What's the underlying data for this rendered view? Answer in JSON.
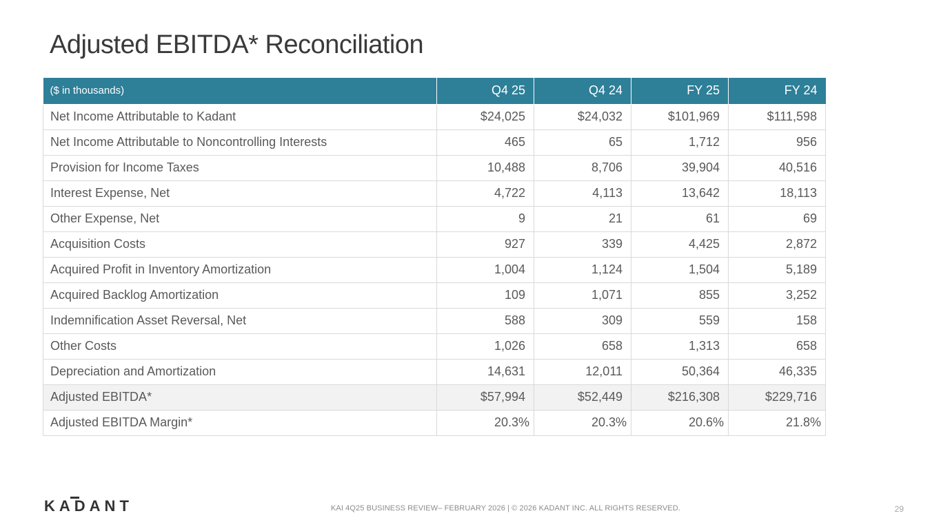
{
  "title": "Adjusted EBITDA* Reconciliation",
  "table": {
    "header": {
      "label": "($ in thousands)",
      "columns": [
        "Q4 25",
        "Q4 24",
        "FY 25",
        "FY 24"
      ]
    },
    "rows": [
      {
        "label": "Net Income Attributable to Kadant",
        "values": [
          "$24,025",
          "$24,032",
          "$101,969",
          "$111,598"
        ]
      },
      {
        "label": "Net Income Attributable to Noncontrolling Interests",
        "values": [
          "465",
          "65",
          "1,712",
          "956"
        ]
      },
      {
        "label": "Provision for Income Taxes",
        "values": [
          "10,488",
          "8,706",
          "39,904",
          "40,516"
        ]
      },
      {
        "label": "Interest Expense, Net",
        "values": [
          "4,722",
          "4,113",
          "13,642",
          "18,113"
        ]
      },
      {
        "label": "Other Expense, Net",
        "values": [
          "9",
          "21",
          "61",
          "69"
        ]
      },
      {
        "label": "Acquisition Costs",
        "values": [
          "927",
          "339",
          "4,425",
          "2,872"
        ]
      },
      {
        "label": "Acquired Profit in Inventory Amortization",
        "values": [
          "1,004",
          "1,124",
          "1,504",
          "5,189"
        ]
      },
      {
        "label": "Acquired Backlog Amortization",
        "values": [
          "109",
          "1,071",
          "855",
          "3,252"
        ]
      },
      {
        "label": "Indemnification Asset Reversal, Net",
        "values": [
          "588",
          "309",
          "559",
          "158"
        ]
      },
      {
        "label": "Other Costs",
        "values": [
          "1,026",
          "658",
          "1,313",
          "658"
        ]
      },
      {
        "label": "Depreciation and Amortization",
        "values": [
          "14,631",
          "12,011",
          "50,364",
          "46,335"
        ]
      },
      {
        "label": "Adjusted EBITDA*",
        "values": [
          "$57,994",
          "$52,449",
          "$216,308",
          "$229,716"
        ]
      },
      {
        "label": "Adjusted EBITDA Margin*",
        "values": [
          "20.3%",
          "20.3%",
          "20.6%",
          "21.8%"
        ]
      }
    ]
  },
  "footer": {
    "logo_text": "KADANT",
    "text": "KAI 4Q25 BUSINESS REVIEW– FEBRUARY 2026 | © 2026 KADANT INC. ALL RIGHTS RESERVED.",
    "page_number": "29"
  },
  "colors": {
    "header_bg": "#2e7f98",
    "highlight_row_bg": "#f2f2f2",
    "logo": "#333333"
  }
}
